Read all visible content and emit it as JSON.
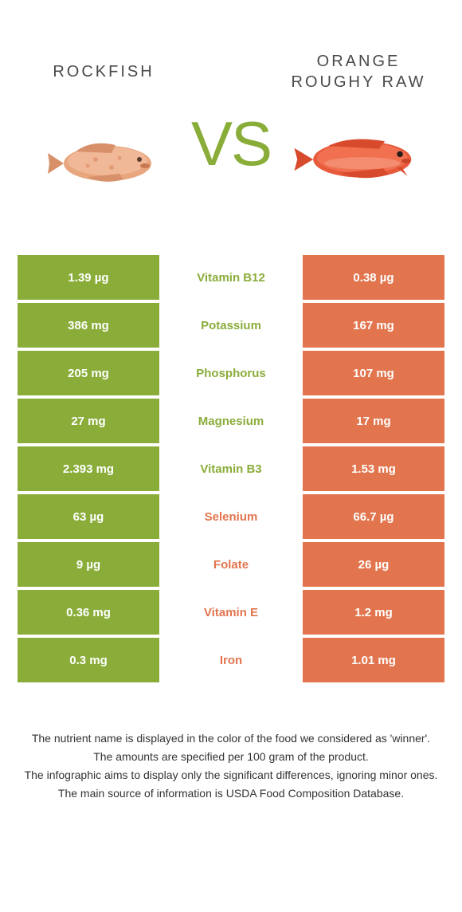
{
  "colors": {
    "left": "#8aad3a",
    "right": "#e2754e",
    "text_dark": "#4a4a4a"
  },
  "left_food": {
    "title": "ROCKFISH"
  },
  "right_food": {
    "title": "ORANGE ROUGHY RAW"
  },
  "vs_label": "VS",
  "rows": [
    {
      "nutrient": "Vitamin B12",
      "left": "1.39 µg",
      "right": "0.38 µg",
      "winner": "left"
    },
    {
      "nutrient": "Potassium",
      "left": "386 mg",
      "right": "167 mg",
      "winner": "left"
    },
    {
      "nutrient": "Phosphorus",
      "left": "205 mg",
      "right": "107 mg",
      "winner": "left"
    },
    {
      "nutrient": "Magnesium",
      "left": "27 mg",
      "right": "17 mg",
      "winner": "left"
    },
    {
      "nutrient": "Vitamin B3",
      "left": "2.393 mg",
      "right": "1.53 mg",
      "winner": "left"
    },
    {
      "nutrient": "Selenium",
      "left": "63 µg",
      "right": "66.7 µg",
      "winner": "right"
    },
    {
      "nutrient": "Folate",
      "left": "9 µg",
      "right": "26 µg",
      "winner": "right"
    },
    {
      "nutrient": "Vitamin E",
      "left": "0.36 mg",
      "right": "1.2 mg",
      "winner": "right"
    },
    {
      "nutrient": "Iron",
      "left": "0.3 mg",
      "right": "1.01 mg",
      "winner": "right"
    }
  ],
  "footer": {
    "line1": "The nutrient name is displayed in the color of the food we considered as 'winner'.",
    "line2": "The amounts are specified per 100 gram of the product.",
    "line3": "The infographic aims to display only the significant differences, ignoring minor ones.",
    "line4": "The main source of information is USDA Food Composition Database."
  }
}
